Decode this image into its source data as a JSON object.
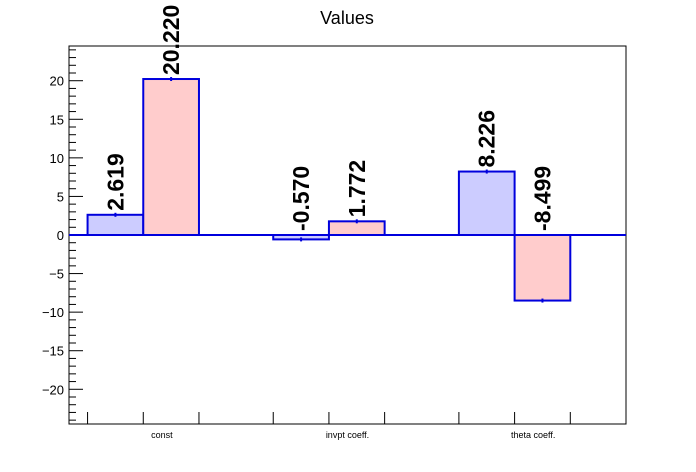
{
  "chart_data": {
    "type": "bar",
    "title": "Values",
    "xlabel": "",
    "ylabel": "",
    "categories": [
      "const",
      "invpt coeff.",
      "theta coeff."
    ],
    "series": [
      {
        "values": [
          2.619,
          -0.57,
          8.226
        ],
        "labels": [
          "2.619",
          "-0.570",
          "8.226"
        ],
        "fill": "#ccccff",
        "stroke": "#0000dd"
      },
      {
        "values": [
          20.22,
          1.772,
          -8.499
        ],
        "labels": [
          "20.220",
          "1.772",
          "-8.499"
        ],
        "fill": "#ffcccc",
        "stroke": "#0000dd"
      }
    ],
    "ylim": [
      -24.5,
      24.5
    ],
    "yticks": [
      -20,
      -15,
      -10,
      -5,
      0,
      5,
      10,
      15,
      20
    ],
    "ytick_labels": [
      "−20",
      "−15",
      "−10",
      "−5",
      "0",
      "5",
      "10",
      "15",
      "20"
    ],
    "grid": false,
    "legend": "none",
    "axis_color": "#000000",
    "zero_line_color": "#0000dd"
  }
}
